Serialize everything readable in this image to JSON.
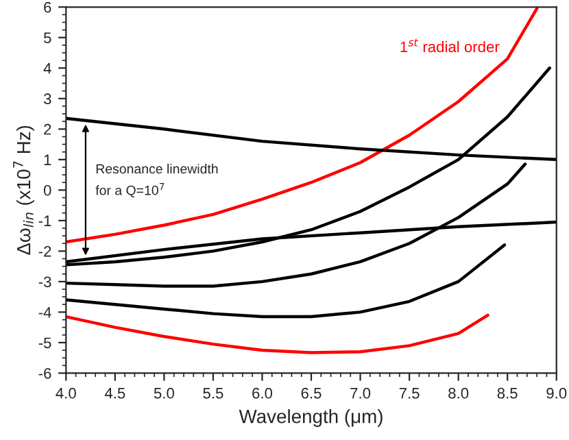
{
  "chart_data": {
    "type": "line",
    "xlabel": "Wavelength (μm)",
    "ylabel": "Δω$_{lin}$ (x10$^{7}$ Hz)",
    "annotations": [
      "Resonance linewidth\nfor a Q=10$^{7}$"
    ],
    "xlim": [
      4.0,
      9.0
    ],
    "ylim": [
      -6,
      6
    ],
    "xticks": [
      {
        "value": 4.0,
        "label": "4.0"
      },
      4.5,
      {
        "value": 5.0,
        "label": "5.0"
      },
      5.5,
      {
        "value": 6.0,
        "label": "6.0"
      },
      6.5,
      {
        "value": 7.0,
        "label": "7.0"
      },
      7.5,
      {
        "value": 8.0,
        "label": "8.0"
      },
      8.5,
      {
        "value": 9.0,
        "label": "9.0"
      }
    ],
    "yticks": [
      -6,
      -5,
      -4,
      -3,
      -2,
      -1,
      0,
      1,
      2,
      3,
      4,
      5,
      6
    ],
    "grid": false,
    "legend": false,
    "marker": "none",
    "line_style": "solid",
    "series": [
      {
        "name": "1$^{st}$ radial order",
        "color": "#ff0000",
        "x": [
          4.0,
          4.5,
          5.0,
          5.5,
          6.0,
          6.5,
          7.0,
          7.5,
          8.0,
          8.5,
          8.8
        ],
        "values": [
          -1.7,
          -1.45,
          -1.15,
          -0.8,
          -0.3,
          0.25,
          0.9,
          1.8,
          2.9,
          4.3,
          5.95
        ]
      },
      {
        "color": "#000000",
        "x": [
          4.0,
          4.5,
          5.0,
          5.5,
          6.0,
          6.5,
          7.0,
          7.5,
          8.0,
          8.5,
          8.93
        ],
        "values": [
          -2.45,
          -2.35,
          -2.2,
          -2.0,
          -1.7,
          -1.3,
          -0.7,
          0.1,
          1.0,
          2.4,
          4.0
        ]
      },
      {
        "color": "#000000",
        "x": [
          4.0,
          4.5,
          5.0,
          5.5,
          6.0,
          6.5,
          7.0,
          7.5,
          8.0,
          8.5,
          8.68
        ],
        "values": [
          -3.05,
          -3.1,
          -3.15,
          -3.15,
          -3.0,
          -2.75,
          -2.35,
          -1.75,
          -0.9,
          0.2,
          0.85
        ]
      },
      {
        "color": "#000000",
        "x": [
          4.0,
          4.5,
          5.0,
          5.5,
          6.0,
          6.5,
          7.0,
          7.5,
          8.0,
          8.47
        ],
        "values": [
          -3.6,
          -3.75,
          -3.9,
          -4.05,
          -4.15,
          -4.15,
          -4.0,
          -3.65,
          -3.0,
          -1.8
        ]
      },
      {
        "color": "#ff0000",
        "x": [
          4.0,
          4.5,
          5.0,
          5.5,
          6.0,
          6.5,
          7.0,
          7.5,
          8.0,
          8.3
        ],
        "values": [
          -4.15,
          -4.5,
          -4.8,
          -5.05,
          -5.25,
          -5.33,
          -5.3,
          -5.1,
          -4.7,
          -4.1
        ]
      },
      {
        "color": "#000000",
        "x": [
          4.0,
          5.0,
          6.0,
          7.0,
          8.0,
          9.0
        ],
        "values": [
          2.35,
          2.0,
          1.6,
          1.35,
          1.15,
          1.0
        ]
      },
      {
        "color": "#000000",
        "x": [
          4.0,
          5.0,
          6.0,
          7.0,
          8.0,
          9.0
        ],
        "values": [
          -2.35,
          -1.95,
          -1.6,
          -1.4,
          -1.2,
          -1.05
        ]
      }
    ]
  }
}
